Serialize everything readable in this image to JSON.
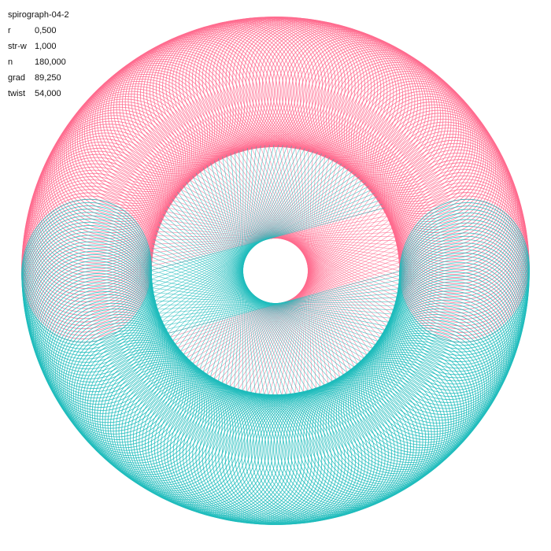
{
  "title": "spirograph-04-2",
  "params": [
    {
      "key": "r",
      "value": "0,500"
    },
    {
      "key": "str-w",
      "value": "1,000"
    },
    {
      "key": "n",
      "value": "180,000"
    },
    {
      "key": "grad",
      "value": "89,250"
    },
    {
      "key": "twist",
      "value": "54,000"
    }
  ],
  "colors": {
    "background": "#ffffff",
    "pink": "#ff6b8e",
    "teal": "#1fbcbc",
    "text": "#111111"
  }
}
